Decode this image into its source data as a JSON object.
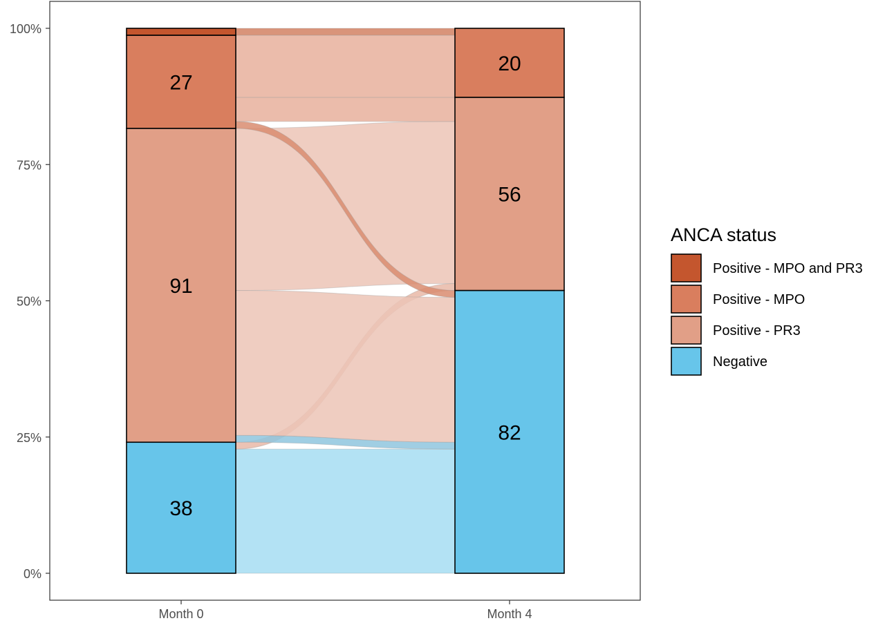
{
  "chart_data": {
    "type": "alluvial",
    "title": "",
    "xlabel": "",
    "ylabel": "",
    "ylim": [
      0,
      100
    ],
    "y_ticks": [
      "0%",
      "25%",
      "50%",
      "75%",
      "100%"
    ],
    "y_tick_values": [
      0,
      25,
      50,
      75,
      100
    ],
    "categories": [
      "Month 0",
      "Month 4"
    ],
    "grid": false,
    "legend": {
      "title": "ANCA status",
      "position": "right",
      "entries": [
        {
          "key": "mpo_pr3",
          "label": "Positive - MPO and PR3",
          "color": "#c4562e"
        },
        {
          "key": "mpo",
          "label": "Positive - MPO",
          "color": "#d97e5e"
        },
        {
          "key": "pr3",
          "label": "Positive - PR3",
          "color": "#e19f87"
        },
        {
          "key": "neg",
          "label": "Negative",
          "color": "#67c5ea"
        }
      ]
    },
    "stacks": [
      {
        "x": "Month 0",
        "segments": [
          {
            "key": "neg",
            "count": 38,
            "label": "38"
          },
          {
            "key": "pr3",
            "count": 91,
            "label": "91"
          },
          {
            "key": "mpo",
            "count": 27,
            "label": "27"
          },
          {
            "key": "mpo_pr3",
            "count": 2,
            "label": ""
          }
        ]
      },
      {
        "x": "Month 4",
        "segments": [
          {
            "key": "neg",
            "count": 82,
            "label": "82"
          },
          {
            "key": "pr3",
            "count": 56,
            "label": "56"
          },
          {
            "key": "mpo",
            "count": 20,
            "label": "20"
          },
          {
            "key": "mpo_pr3",
            "count": 0,
            "label": ""
          }
        ]
      }
    ],
    "flows": [
      {
        "from": "neg",
        "to": "neg",
        "count": 36,
        "color": "#a6ddf2"
      },
      {
        "from": "neg",
        "to": "pr3",
        "count": 2,
        "color": "#e9b9a7"
      },
      {
        "from": "pr3",
        "to": "neg",
        "count": 2,
        "color": "#8fc6de"
      },
      {
        "from": "pr3",
        "to": "neg",
        "count": 42,
        "color": "#ecc4b6"
      },
      {
        "from": "pr3",
        "to": "pr3",
        "count": 47,
        "color": "#ecc4b6"
      },
      {
        "from": "mpo",
        "to": "neg",
        "count": 2,
        "color": "#d98c70"
      },
      {
        "from": "mpo",
        "to": "pr3",
        "count": 7,
        "color": "#e7b09c"
      },
      {
        "from": "mpo",
        "to": "mpo",
        "count": 18,
        "color": "#e7b09c"
      },
      {
        "from": "mpo_pr3",
        "to": "mpo",
        "count": 2,
        "color": "#d28163"
      }
    ]
  }
}
